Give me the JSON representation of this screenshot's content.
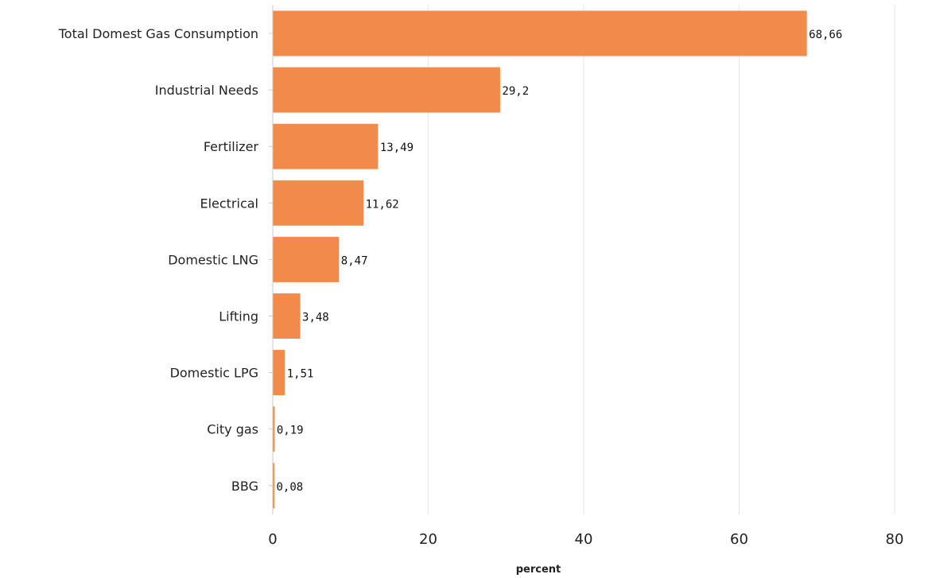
{
  "chart_data": {
    "type": "bar",
    "orientation": "horizontal",
    "categories": [
      "Total Domest Gas Consumption",
      "Industrial Needs",
      "Fertilizer",
      "Electrical",
      "Domestic LNG",
      "Lifting",
      "Domestic LPG",
      "City gas",
      "BBG"
    ],
    "values": [
      68.66,
      29.2,
      13.49,
      11.62,
      8.47,
      3.48,
      1.51,
      0.19,
      0.08
    ],
    "value_labels": [
      "68,66",
      "29,2",
      "13,49",
      "11,62",
      "8,47",
      "3,48",
      "1,51",
      "0,19",
      "0,08"
    ],
    "xlabel": "percent",
    "ylabel": "",
    "xlim": [
      0,
      80
    ],
    "x_ticks": [
      "0",
      "20",
      "40",
      "60",
      "80"
    ],
    "grid": "vertical",
    "bar_color": "#f28a4c",
    "grid_color": "#e6e6e6",
    "axis_color": "#c8c8c8"
  }
}
